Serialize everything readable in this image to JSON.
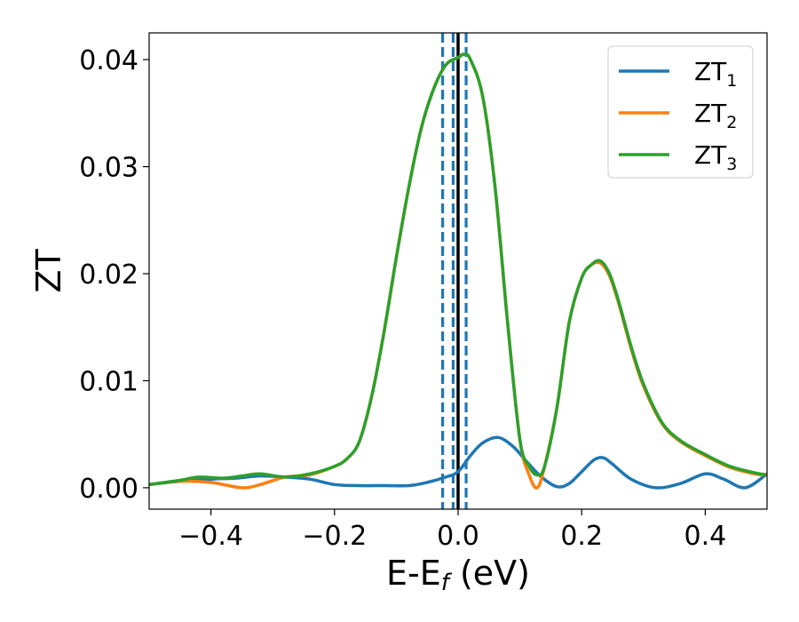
{
  "chart_data": {
    "type": "line",
    "xlabel": "E-E",
    "xlabel_sub": "f",
    "xlabel_unit": " (eV)",
    "ylabel": "ZT",
    "xlim": [
      -0.5,
      0.5
    ],
    "ylim": [
      -0.002,
      0.0425
    ],
    "xticks": [
      -0.4,
      -0.2,
      0.0,
      0.2,
      0.4
    ],
    "xtick_labels": [
      "−0.4",
      "−0.2",
      "0.0",
      "0.2",
      "0.4"
    ],
    "yticks": [
      0.0,
      0.01,
      0.02,
      0.03,
      0.04
    ],
    "ytick_labels": [
      "0.00",
      "0.01",
      "0.02",
      "0.03",
      "0.04"
    ],
    "legend_position": "top-right",
    "grid": false,
    "vlines": [
      {
        "x": -0.025,
        "style": "dashed",
        "color": "#1f77b4"
      },
      {
        "x": -0.008,
        "style": "dashed",
        "color": "#1f77b4"
      },
      {
        "x": 0.013,
        "style": "dashed",
        "color": "#1f77b4"
      },
      {
        "x": 0.0,
        "style": "solid",
        "color": "#000000"
      }
    ],
    "series": [
      {
        "name": "ZT",
        "name_sub": "1",
        "color": "#1f77b4",
        "x": [
          -0.5,
          -0.45,
          -0.4,
          -0.36,
          -0.32,
          -0.28,
          -0.24,
          -0.2,
          -0.16,
          -0.12,
          -0.08,
          -0.05,
          -0.02,
          0.0,
          0.02,
          0.04,
          0.065,
          0.09,
          0.11,
          0.135,
          0.16,
          0.18,
          0.2,
          0.22,
          0.235,
          0.25,
          0.28,
          0.32,
          0.36,
          0.4,
          0.43,
          0.465,
          0.5
        ],
        "y": [
          0.0003,
          0.0006,
          0.0008,
          0.0009,
          0.0011,
          0.001,
          0.0008,
          0.0003,
          0.0002,
          0.0002,
          0.0002,
          0.0005,
          0.001,
          0.0015,
          0.003,
          0.0042,
          0.0047,
          0.0038,
          0.0025,
          0.001,
          0.0001,
          0.0004,
          0.0015,
          0.0026,
          0.0028,
          0.0022,
          0.0008,
          0.0,
          0.0004,
          0.0013,
          0.0008,
          0.0,
          0.0013
        ]
      },
      {
        "name": "ZT",
        "name_sub": "2",
        "color": "#ff7f0e",
        "x": [
          -0.5,
          -0.45,
          -0.4,
          -0.35,
          -0.32,
          -0.28,
          -0.24,
          -0.2,
          -0.18,
          -0.16,
          -0.14,
          -0.12,
          -0.1,
          -0.08,
          -0.06,
          -0.04,
          -0.02,
          0.0,
          0.01,
          0.02,
          0.04,
          0.06,
          0.08,
          0.1,
          0.115,
          0.128,
          0.14,
          0.16,
          0.18,
          0.2,
          0.215,
          0.23,
          0.245,
          0.26,
          0.28,
          0.3,
          0.33,
          0.36,
          0.4,
          0.44,
          0.48,
          0.5
        ],
        "y": [
          0.0003,
          0.0006,
          0.0005,
          0.0,
          0.0003,
          0.001,
          0.0012,
          0.002,
          0.0027,
          0.0043,
          0.0085,
          0.0145,
          0.0215,
          0.028,
          0.0335,
          0.0372,
          0.0395,
          0.0402,
          0.0405,
          0.04,
          0.0365,
          0.028,
          0.0155,
          0.0045,
          0.0012,
          0.0,
          0.002,
          0.0075,
          0.0155,
          0.0196,
          0.0208,
          0.021,
          0.0198,
          0.0172,
          0.013,
          0.0095,
          0.006,
          0.0043,
          0.003,
          0.0019,
          0.0013,
          0.0012
        ]
      },
      {
        "name": "ZT",
        "name_sub": "3",
        "color": "#2ca02c",
        "x": [
          -0.5,
          -0.45,
          -0.42,
          -0.38,
          -0.35,
          -0.32,
          -0.28,
          -0.24,
          -0.2,
          -0.18,
          -0.16,
          -0.14,
          -0.12,
          -0.1,
          -0.08,
          -0.06,
          -0.04,
          -0.02,
          0.0,
          0.01,
          0.02,
          0.04,
          0.06,
          0.08,
          0.1,
          0.115,
          0.128,
          0.14,
          0.16,
          0.18,
          0.2,
          0.215,
          0.23,
          0.245,
          0.26,
          0.28,
          0.3,
          0.33,
          0.36,
          0.4,
          0.44,
          0.48,
          0.5
        ],
        "y": [
          0.0003,
          0.0007,
          0.001,
          0.0009,
          0.0011,
          0.0013,
          0.001,
          0.0013,
          0.002,
          0.0027,
          0.0043,
          0.0085,
          0.0145,
          0.0215,
          0.028,
          0.0335,
          0.0372,
          0.0395,
          0.0402,
          0.0405,
          0.04,
          0.0365,
          0.028,
          0.0155,
          0.0045,
          0.002,
          0.0012,
          0.002,
          0.0075,
          0.0155,
          0.0196,
          0.0208,
          0.0212,
          0.02,
          0.0174,
          0.0132,
          0.0097,
          0.0061,
          0.0044,
          0.0031,
          0.002,
          0.0014,
          0.0012
        ]
      }
    ]
  }
}
